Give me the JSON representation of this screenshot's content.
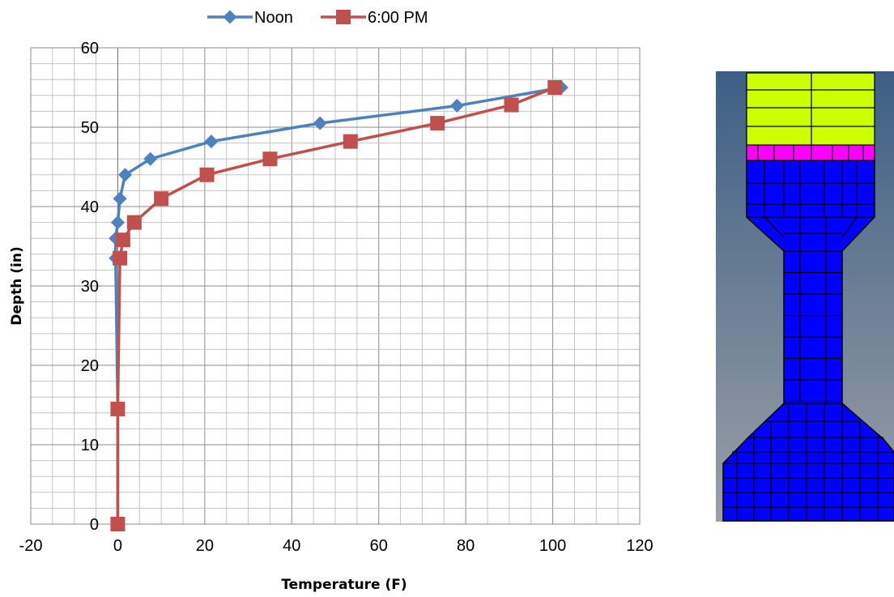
{
  "chart_data": {
    "type": "line",
    "title": "",
    "xlabel": "Temperature (F)",
    "ylabel": "Depth (in)",
    "xlim": [
      -20,
      120
    ],
    "ylim": [
      0,
      60
    ],
    "x_ticks": [
      -20,
      0,
      20,
      40,
      60,
      80,
      100,
      120
    ],
    "y_ticks": [
      0,
      10,
      20,
      30,
      40,
      50,
      60
    ],
    "grid": true,
    "legend_position": "top",
    "series": [
      {
        "name": "Noon",
        "color": "#4F81BD",
        "marker": "diamond",
        "points": [
          {
            "x": 102,
            "y": 55
          },
          {
            "x": 78,
            "y": 52.7
          },
          {
            "x": 46.5,
            "y": 50.5
          },
          {
            "x": 21.5,
            "y": 48.2
          },
          {
            "x": 7.5,
            "y": 46
          },
          {
            "x": 1.7,
            "y": 44
          },
          {
            "x": 0.5,
            "y": 41
          },
          {
            "x": 0,
            "y": 38
          },
          {
            "x": -0.5,
            "y": 36
          },
          {
            "x": -0.5,
            "y": 33.5
          },
          {
            "x": 0,
            "y": 14.5
          },
          {
            "x": 0,
            "y": 0
          }
        ]
      },
      {
        "name": "6:00 PM",
        "color": "#C0504D",
        "marker": "square",
        "points": [
          {
            "x": 100.5,
            "y": 55
          },
          {
            "x": 90.5,
            "y": 52.8
          },
          {
            "x": 73.5,
            "y": 50.5
          },
          {
            "x": 53.5,
            "y": 48.2
          },
          {
            "x": 35,
            "y": 46
          },
          {
            "x": 20.5,
            "y": 44
          },
          {
            "x": 10,
            "y": 41
          },
          {
            "x": 3.8,
            "y": 38
          },
          {
            "x": 1.2,
            "y": 35.8
          },
          {
            "x": 0.5,
            "y": 33.5
          },
          {
            "x": 0,
            "y": 14.5
          },
          {
            "x": 0,
            "y": 0
          }
        ]
      }
    ]
  },
  "mesh_diagram": {
    "background_top": "#3d5f85",
    "background_bottom": "#9aa0a6",
    "colors": {
      "top_layer": "#ccff00",
      "interface_layer": "#ff00ff",
      "body": "#0000ff",
      "edges": "#000000"
    }
  }
}
